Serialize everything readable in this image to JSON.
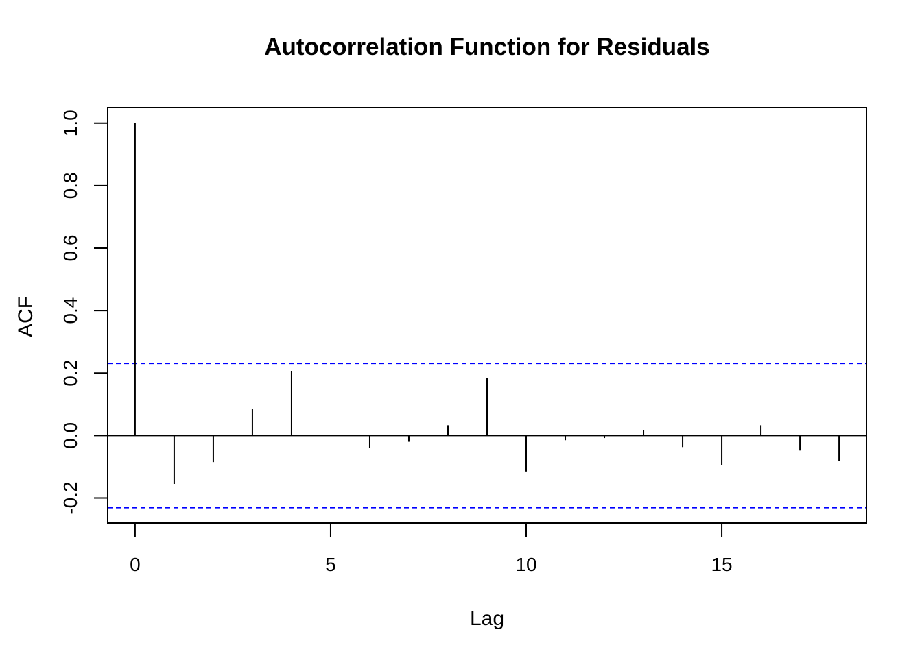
{
  "chart_data": {
    "type": "bar",
    "title": "Autocorrelation Function for Residuals",
    "xlabel": "Lag",
    "ylabel": "ACF",
    "xlim": [
      -0.7,
      18.7
    ],
    "ylim": [
      -0.28,
      1.05
    ],
    "x_ticks": [
      0,
      5,
      10,
      15
    ],
    "x_tick_labels": [
      "0",
      "5",
      "10",
      "15"
    ],
    "y_ticks": [
      -0.2,
      0.0,
      0.2,
      0.4,
      0.6,
      0.8,
      1.0
    ],
    "y_tick_labels": [
      "-0.2",
      "0.0",
      "0.2",
      "0.4",
      "0.6",
      "0.8",
      "1.0"
    ],
    "lags": [
      0,
      1,
      2,
      3,
      4,
      5,
      6,
      7,
      8,
      9,
      10,
      11,
      12,
      13,
      14,
      15,
      16,
      17,
      18
    ],
    "acf": [
      1.0,
      -0.155,
      -0.085,
      0.085,
      0.205,
      0.003,
      -0.04,
      -0.02,
      0.033,
      0.185,
      -0.115,
      -0.015,
      -0.008,
      0.017,
      -0.037,
      -0.095,
      0.033,
      -0.048,
      -0.082
    ],
    "confidence_bounds": [
      0.231,
      -0.231
    ],
    "zero_line": true,
    "grid": false,
    "colors": {
      "spikes": "#000000",
      "confidence": "#0000ff",
      "frame": "#000000"
    }
  }
}
